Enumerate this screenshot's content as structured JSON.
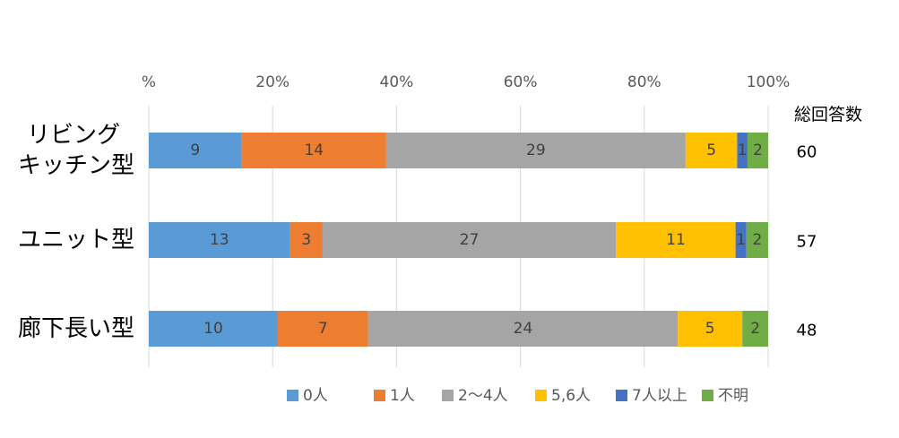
{
  "chart_data": {
    "type": "bar",
    "orientation": "horizontal",
    "stacked": "percent",
    "x_ticks": [
      "%",
      "20%",
      "40%",
      "60%",
      "80%",
      "100%"
    ],
    "categories": [
      "リビング\nキッチン型",
      "ユニット型",
      "廊下長い型"
    ],
    "series": [
      {
        "name": "0人",
        "color": "#5B9BD5",
        "values": [
          9,
          13,
          10
        ]
      },
      {
        "name": "1人",
        "color": "#ED7D31",
        "values": [
          14,
          3,
          7
        ]
      },
      {
        "name": "2〜4人",
        "color": "#A5A5A5",
        "values": [
          29,
          27,
          24
        ]
      },
      {
        "name": "5,6人",
        "color": "#FFC000",
        "values": [
          5,
          11,
          5
        ]
      },
      {
        "name": "7人以上",
        "color": "#4472C4",
        "values": [
          1,
          1,
          0
        ]
      },
      {
        "name": "不明",
        "color": "#70AD47",
        "values": [
          2,
          2,
          2
        ]
      }
    ],
    "totals_header": "総回答数",
    "totals": [
      60,
      57,
      48
    ],
    "grid": true,
    "legend": "bottom"
  }
}
